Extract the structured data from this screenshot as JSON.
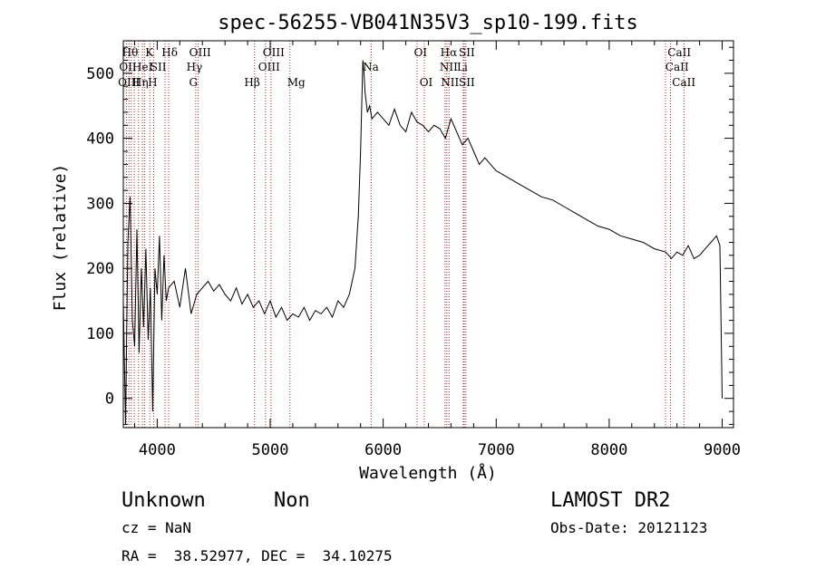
{
  "chart_data": {
    "type": "line",
    "title": "spec-56255-VB041N35V3_sp10-199.fits",
    "xlabel": "Wavelength (Å)",
    "ylabel": "Flux (relative)",
    "xlim": [
      3700,
      9100
    ],
    "ylim": [
      -45,
      550
    ],
    "x_ticks": [
      4000,
      5000,
      6000,
      7000,
      8000,
      9000
    ],
    "y_ticks": [
      0,
      100,
      200,
      300,
      400,
      500
    ],
    "line_color": "#000000",
    "marker_color": "#b22222",
    "spectrum": {
      "x": [
        3700,
        3720,
        3740,
        3760,
        3780,
        3800,
        3820,
        3840,
        3860,
        3880,
        3900,
        3920,
        3940,
        3960,
        3980,
        4000,
        4020,
        4040,
        4060,
        4080,
        4100,
        4150,
        4200,
        4250,
        4300,
        4350,
        4400,
        4450,
        4500,
        4550,
        4600,
        4650,
        4700,
        4750,
        4800,
        4850,
        4900,
        4950,
        5000,
        5050,
        5100,
        5150,
        5200,
        5250,
        5300,
        5350,
        5400,
        5450,
        5500,
        5550,
        5600,
        5650,
        5700,
        5750,
        5780,
        5800,
        5820,
        5830,
        5840,
        5860,
        5880,
        5900,
        5950,
        6000,
        6050,
        6100,
        6150,
        6200,
        6250,
        6300,
        6350,
        6400,
        6450,
        6500,
        6550,
        6600,
        6650,
        6700,
        6750,
        6800,
        6850,
        6900,
        6950,
        7000,
        7100,
        7200,
        7300,
        7400,
        7500,
        7600,
        7700,
        7800,
        7900,
        8000,
        8100,
        8200,
        8300,
        8400,
        8500,
        8550,
        8600,
        8650,
        8700,
        8750,
        8800,
        8850,
        8900,
        8950,
        8980,
        9000
      ],
      "y": [
        150,
        -40,
        240,
        310,
        120,
        80,
        260,
        70,
        200,
        110,
        230,
        90,
        170,
        -20,
        200,
        160,
        250,
        120,
        220,
        150,
        170,
        180,
        140,
        200,
        130,
        160,
        170,
        180,
        165,
        175,
        160,
        150,
        170,
        145,
        160,
        140,
        150,
        130,
        150,
        125,
        140,
        120,
        130,
        125,
        140,
        120,
        135,
        130,
        140,
        125,
        150,
        140,
        160,
        200,
        280,
        380,
        520,
        500,
        470,
        440,
        450,
        430,
        440,
        430,
        420,
        445,
        420,
        410,
        440,
        425,
        420,
        410,
        420,
        415,
        400,
        430,
        410,
        390,
        400,
        380,
        360,
        370,
        360,
        350,
        340,
        330,
        320,
        310,
        305,
        295,
        285,
        275,
        265,
        260,
        250,
        245,
        240,
        230,
        225,
        215,
        225,
        220,
        235,
        215,
        220,
        230,
        240,
        250,
        235,
        0
      ]
    },
    "line_markers": {
      "top": [
        "Hθ",
        "K",
        "Hδ",
        "OIII",
        "OIII",
        "OI",
        "Hα",
        "SII",
        "CaII"
      ],
      "middle": [
        "OII",
        "HeI",
        "SII",
        "Hγ",
        "OIII",
        "Na",
        "NII",
        "Li",
        "CaII"
      ],
      "bottom": [
        "OIII",
        "Hη",
        "H",
        "G",
        "Hβ",
        "Mg",
        "OI",
        "NII",
        "SII",
        "CaII"
      ],
      "wavelengths": [
        3727,
        3750,
        3771,
        3797,
        3835,
        3869,
        3889,
        3934,
        3969,
        4069,
        4102,
        4341,
        4363,
        4861,
        4959,
        5007,
        5175,
        5893,
        6300,
        6363,
        6548,
        6563,
        6583,
        6708,
        6717,
        6731,
        8498,
        8542,
        8662
      ]
    }
  },
  "footer": {
    "object_class": "Unknown",
    "object_subclass": "Non",
    "redshift": "cz = NaN",
    "coords": "RA =  38.52977, DEC =  34.10275",
    "survey": "LAMOST DR2",
    "obs_date": "Obs-Date: 20121123"
  }
}
